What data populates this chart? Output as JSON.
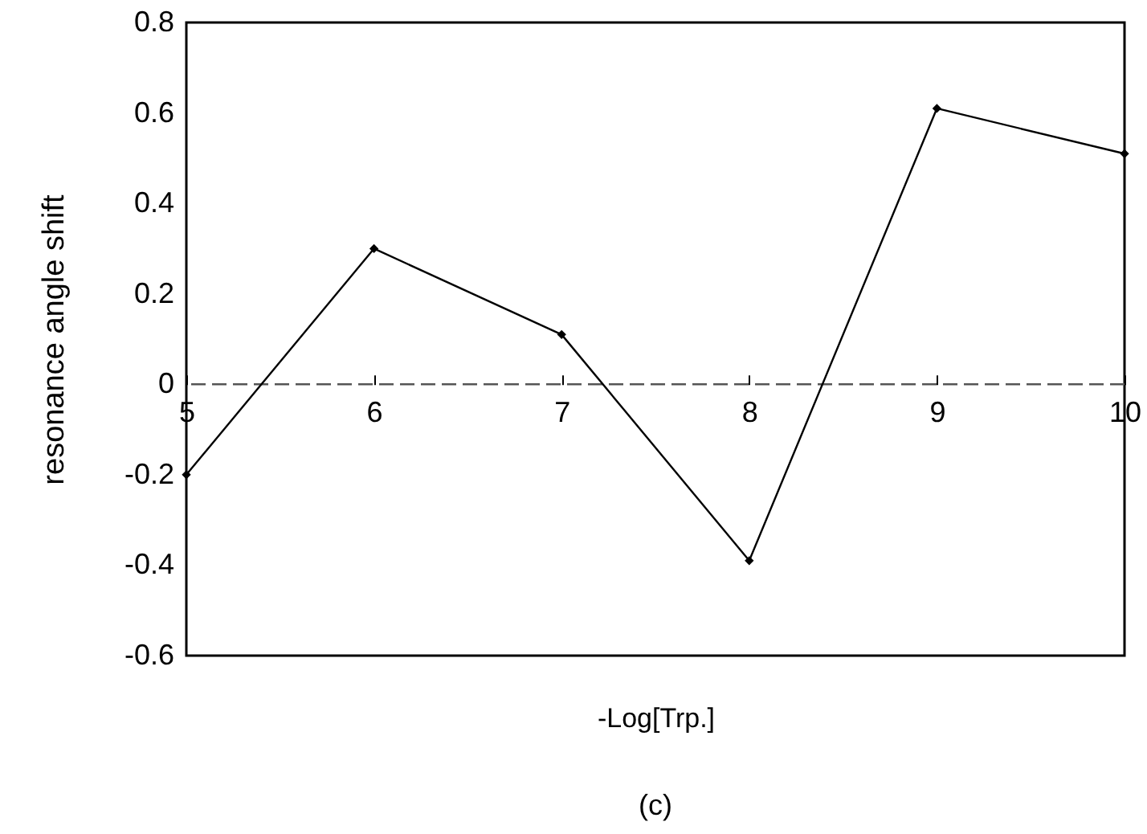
{
  "chart_data": {
    "type": "line",
    "xlabel": "-Log[Trp.]",
    "ylabel": "resonance angle shift",
    "annotations": [
      "(c)"
    ],
    "x": [
      5,
      6,
      7,
      8,
      9,
      10
    ],
    "series": [
      {
        "color": "#000000",
        "values": [
          -0.2,
          0.3,
          0.11,
          -0.39,
          0.61,
          0.51
        ]
      }
    ],
    "xlim": [
      5,
      10
    ],
    "xticks": [
      5,
      6,
      7,
      8,
      9,
      10
    ],
    "ylim": [
      -0.6,
      0.8
    ],
    "yticks": [
      -0.6,
      -0.4,
      -0.2,
      0,
      0.2,
      0.4,
      0.6,
      0.8
    ],
    "ref_lines": [
      {
        "axis": "y",
        "value": 0,
        "color": "#555555",
        "line_style": "dashed"
      }
    ],
    "grid": false,
    "marker": "diamond",
    "line_style": "solid"
  }
}
